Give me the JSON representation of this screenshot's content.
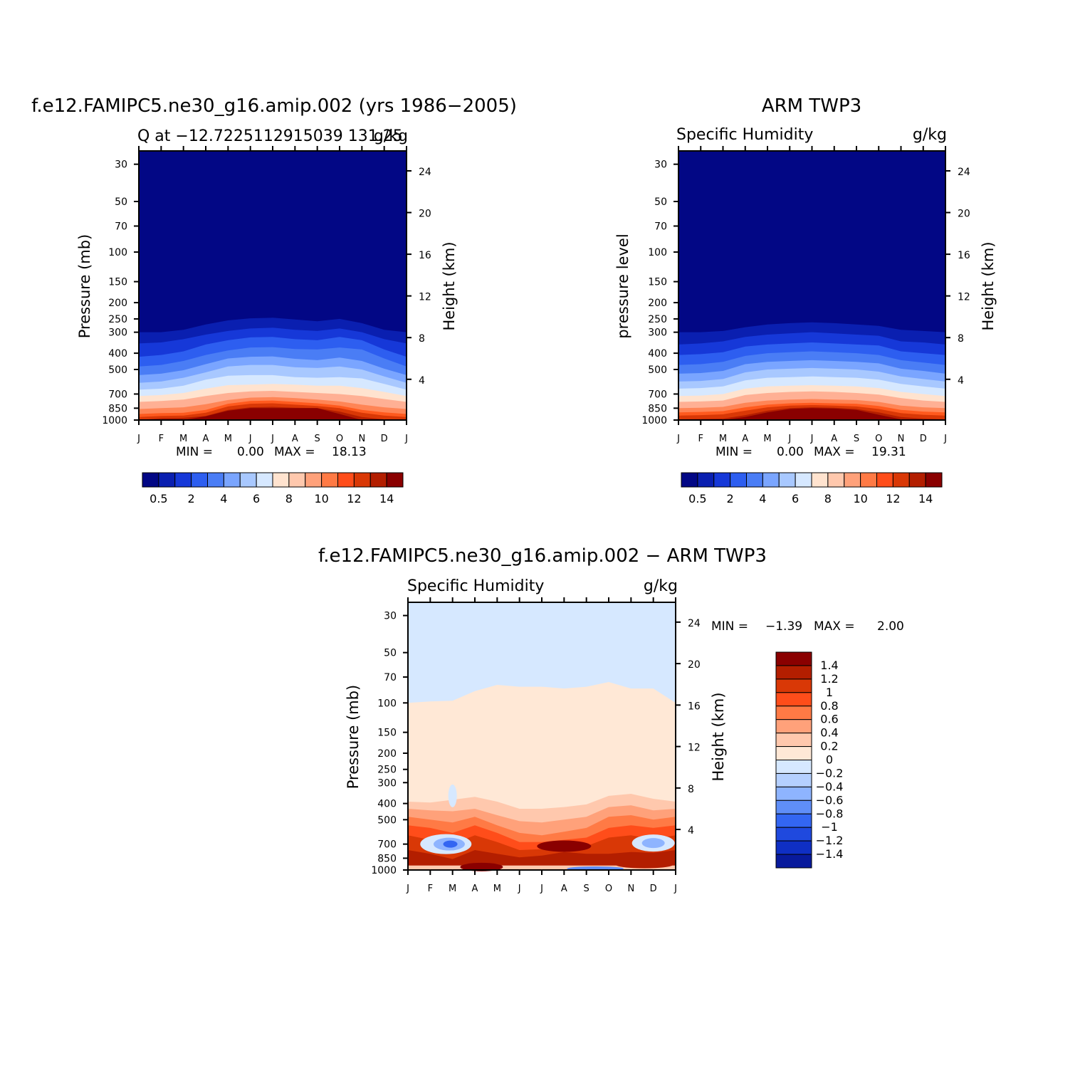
{
  "chart_data": [
    {
      "type": "heatmap",
      "id": "model",
      "title": "f.e12.FAMIPC5.ne30_g16.amip.002 (yrs 1986−2005)",
      "left_string": "Q at −12.7225112915039 131.25",
      "right_string": "g/kg",
      "ylabel": "Pressure (mb)",
      "ylabel2": "Height (km)",
      "months": [
        "J",
        "F",
        "M",
        "A",
        "M",
        "J",
        "J",
        "A",
        "S",
        "O",
        "N",
        "D",
        "J"
      ],
      "pressure_ticks": [
        "30",
        "50",
        "70",
        "100",
        "150",
        "200",
        "250",
        "300",
        "400",
        "500",
        "700",
        "850",
        "1000"
      ],
      "height_ticks": [
        "24",
        "20",
        "16",
        "12",
        "8",
        "4"
      ],
      "min_label": "MIN =",
      "min_value": "0.00",
      "max_label": "MAX =",
      "max_value": "18.13",
      "colorbar_labels": [
        "0.5",
        "2",
        "4",
        "6",
        "8",
        "10",
        "12",
        "14"
      ],
      "ylim_mb": [
        1000,
        25
      ],
      "colors": [
        "#8a0000",
        "#b31e00",
        "#d93806",
        "#ff5a1e",
        "#ff8556",
        "#ffb094",
        "#ffe3cf",
        "#d6e8ff",
        "#a8c8ff",
        "#7aa5ff",
        "#4a7df5",
        "#2d5ef0",
        "#1638d8",
        "#0a1fb0",
        "#020785"
      ],
      "isoline_pressure_mb": {
        "a": [
          1000,
          1000,
          1000,
          950,
          880,
          850,
          850,
          850,
          850,
          920,
          1000,
          1000,
          1000
        ],
        "b": [
          1000,
          975,
          970,
          945,
          870,
          840,
          835,
          845,
          850,
          890,
          960,
          990,
          1000
        ],
        "c": [
          960,
          945,
          940,
          905,
          830,
          800,
          795,
          810,
          825,
          850,
          905,
          940,
          960
        ],
        "d": [
          920,
          910,
          905,
          870,
          800,
          770,
          765,
          780,
          795,
          820,
          870,
          900,
          920
        ],
        "e": [
          860,
          850,
          840,
          805,
          760,
          735,
          730,
          740,
          755,
          775,
          810,
          840,
          860
        ],
        "f": [
          780,
          770,
          755,
          720,
          690,
          675,
          670,
          680,
          690,
          700,
          720,
          750,
          780
        ],
        "g": [
          720,
          710,
          690,
          650,
          620,
          615,
          610,
          615,
          625,
          625,
          645,
          680,
          720
        ],
        "h": [
          660,
          650,
          625,
          575,
          545,
          540,
          540,
          555,
          560,
          555,
          565,
          610,
          660
        ],
        "i": [
          600,
          590,
          560,
          520,
          480,
          470,
          470,
          485,
          490,
          480,
          500,
          550,
          600
        ],
        "j": [
          540,
          530,
          505,
          465,
          430,
          420,
          418,
          432,
          440,
          425,
          445,
          495,
          540
        ],
        "k": [
          480,
          470,
          445,
          410,
          385,
          370,
          368,
          378,
          380,
          370,
          380,
          430,
          480
        ],
        "l": [
          420,
          410,
          390,
          355,
          335,
          322,
          320,
          330,
          335,
          320,
          335,
          380,
          420
        ],
        "m": [
          350,
          345,
          330,
          310,
          295,
          285,
          282,
          290,
          295,
          285,
          300,
          330,
          350
        ],
        "n": [
          300,
          300,
          290,
          270,
          255,
          248,
          246,
          252,
          258,
          250,
          265,
          290,
          300
        ]
      }
    },
    {
      "type": "heatmap",
      "id": "obs",
      "title": "ARM TWP3",
      "left_string": "Specific Humidity",
      "right_string": "g/kg",
      "ylabel": "pressure level",
      "ylabel2": "Height (km)",
      "months": [
        "J",
        "F",
        "M",
        "A",
        "M",
        "J",
        "J",
        "A",
        "S",
        "O",
        "N",
        "D",
        "J"
      ],
      "pressure_ticks": [
        "30",
        "50",
        "70",
        "100",
        "150",
        "200",
        "250",
        "300",
        "400",
        "500",
        "700",
        "850",
        "1000"
      ],
      "height_ticks": [
        "24",
        "20",
        "16",
        "12",
        "8",
        "4"
      ],
      "min_label": "MIN =",
      "min_value": "0.00",
      "max_label": "MAX =",
      "max_value": "19.31",
      "colorbar_labels": [
        "0.5",
        "2",
        "4",
        "6",
        "8",
        "10",
        "12",
        "14"
      ],
      "ylim_mb": [
        1000,
        25
      ],
      "colors": [
        "#8a0000",
        "#b31e00",
        "#d93806",
        "#ff5a1e",
        "#ff8556",
        "#ffb094",
        "#ffe3cf",
        "#d6e8ff",
        "#a8c8ff",
        "#7aa5ff",
        "#4a7df5",
        "#2d5ef0",
        "#1638d8",
        "#0a1fb0",
        "#020785"
      ],
      "isoline_pressure_mb": {
        "a": [
          1000,
          1000,
          1000,
          960,
          900,
          860,
          850,
          855,
          870,
          930,
          990,
          1000,
          1000
        ],
        "b": [
          990,
          985,
          980,
          935,
          880,
          850,
          840,
          845,
          860,
          900,
          960,
          980,
          990
        ],
        "c": [
          940,
          935,
          925,
          880,
          840,
          820,
          815,
          820,
          830,
          860,
          910,
          930,
          940
        ],
        "d": [
          900,
          895,
          885,
          840,
          810,
          795,
          790,
          795,
          800,
          825,
          870,
          890,
          900
        ],
        "e": [
          850,
          845,
          835,
          790,
          765,
          755,
          750,
          755,
          760,
          780,
          820,
          840,
          850
        ],
        "f": [
          780,
          775,
          765,
          710,
          690,
          680,
          675,
          680,
          690,
          705,
          740,
          765,
          780
        ],
        "g": [
          720,
          715,
          700,
          650,
          630,
          625,
          620,
          625,
          630,
          645,
          680,
          700,
          720
        ],
        "h": [
          650,
          645,
          630,
          580,
          560,
          555,
          550,
          555,
          560,
          575,
          610,
          630,
          650
        ],
        "i": [
          590,
          585,
          570,
          520,
          500,
          495,
          490,
          495,
          500,
          515,
          550,
          570,
          590
        ],
        "j": [
          530,
          525,
          510,
          465,
          450,
          445,
          440,
          445,
          450,
          460,
          495,
          510,
          530
        ],
        "k": [
          470,
          465,
          450,
          415,
          400,
          395,
          390,
          395,
          400,
          410,
          440,
          455,
          470
        ],
        "l": [
          410,
          405,
          395,
          365,
          355,
          350,
          345,
          350,
          355,
          360,
          390,
          400,
          410
        ],
        "m": [
          355,
          350,
          340,
          320,
          310,
          305,
          300,
          305,
          310,
          315,
          340,
          345,
          355
        ],
        "n": [
          300,
          300,
          295,
          280,
          270,
          265,
          262,
          265,
          270,
          275,
          290,
          295,
          300
        ]
      }
    },
    {
      "type": "heatmap",
      "id": "diff",
      "title": "f.e12.FAMIPC5.ne30_g16.amip.002 − ARM TWP3",
      "left_string": "Specific Humidity",
      "right_string": "g/kg",
      "ylabel": "Pressure (mb)",
      "ylabel2": "Height (km)",
      "months": [
        "J",
        "F",
        "M",
        "A",
        "M",
        "J",
        "J",
        "A",
        "S",
        "O",
        "N",
        "D",
        "J"
      ],
      "pressure_ticks": [
        "30",
        "50",
        "70",
        "100",
        "150",
        "200",
        "250",
        "300",
        "400",
        "500",
        "700",
        "850",
        "1000"
      ],
      "height_ticks": [
        "24",
        "20",
        "16",
        "12",
        "8",
        "4"
      ],
      "min_label": "MIN =",
      "min_value": "−1.39",
      "max_label": "MAX =",
      "max_value": "2.00",
      "colorbar_labels": [
        "1.4",
        "1.2",
        "1",
        "0.8",
        "0.6",
        "0.4",
        "0.2",
        "0",
        "−0.2",
        "−0.4",
        "−0.6",
        "−0.8",
        "−1",
        "−1.2",
        "−1.4"
      ],
      "colorbar_colors": [
        "#8a0000",
        "#b31e00",
        "#d93806",
        "#ff4d1a",
        "#ff7a45",
        "#ffa17a",
        "#ffc8ad",
        "#ffe8d6",
        "#d6e8ff",
        "#b5d0ff",
        "#8eb4ff",
        "#5f8ef8",
        "#3366f2",
        "#1f49de",
        "#0f2fc4",
        "#081a9c"
      ],
      "ylim_mb": [
        1000,
        25
      ],
      "upper_boundary_mb": [
        100,
        98,
        97,
        85,
        78,
        80,
        80,
        82,
        80,
        75,
        82,
        82,
        100
      ],
      "note": "positive moist anomaly in the lower troposphere, negative pockets near Mar and Dec at ~700 mb"
    }
  ]
}
